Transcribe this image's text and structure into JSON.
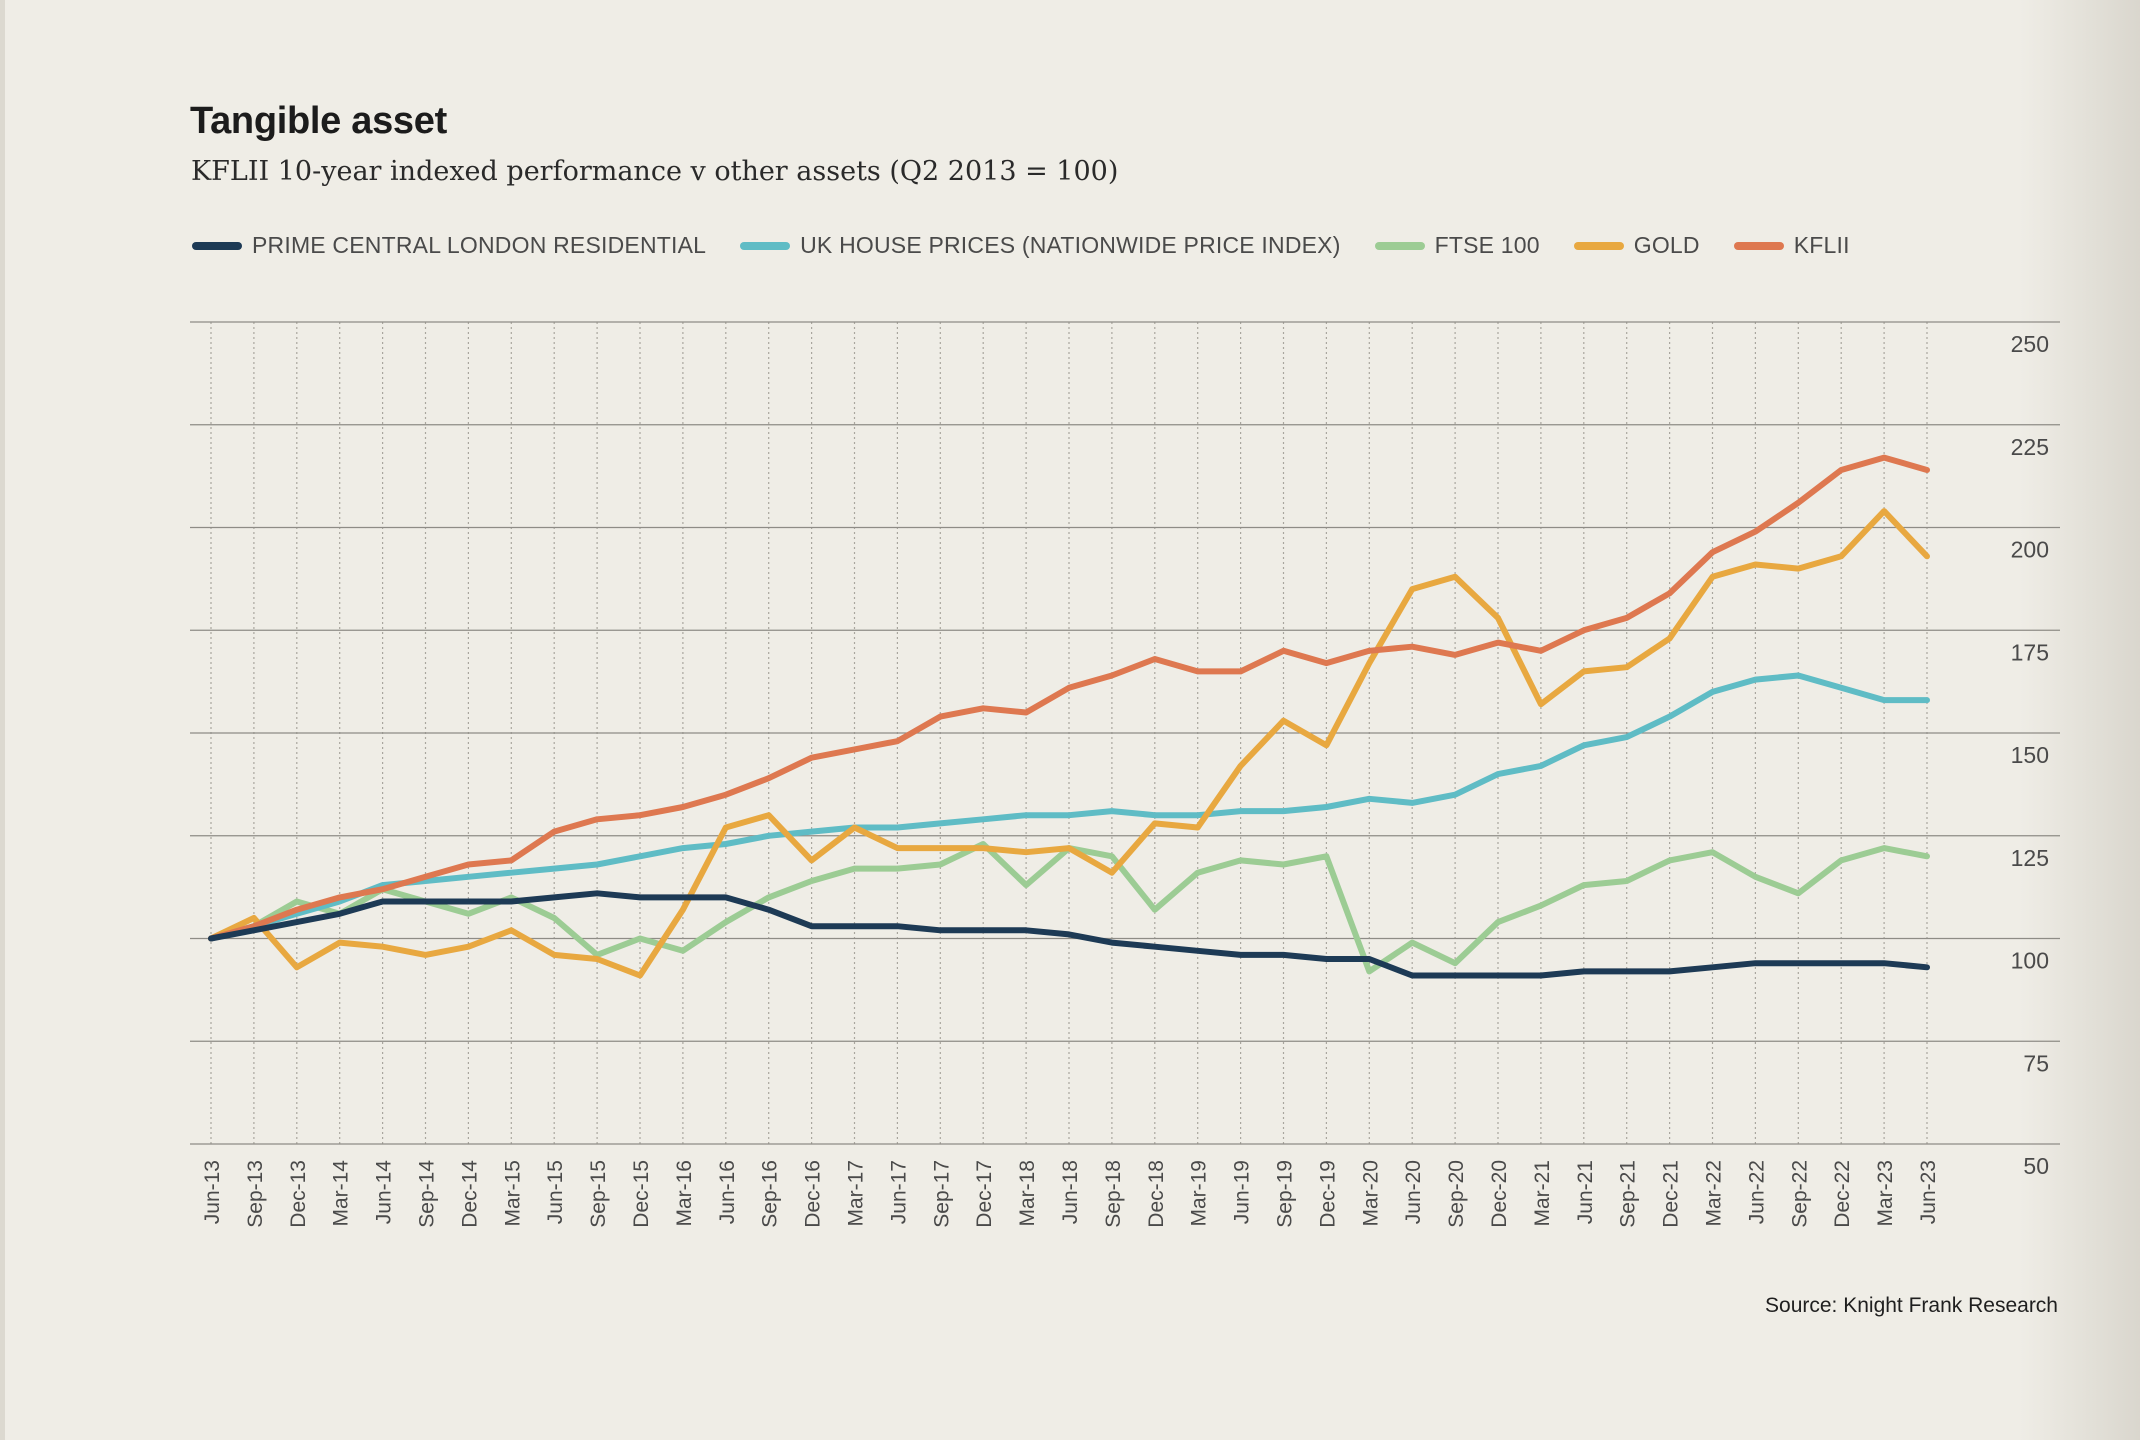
{
  "header": {
    "title": "Tangible asset",
    "subtitle": "KFLII 10-year indexed performance v other assets (Q2 2013 = 100)"
  },
  "footer": {
    "source": "Source: Knight Frank Research"
  },
  "colors": {
    "background": "#efede6",
    "grid_major": "#8e8c86",
    "grid_minor": "#a9a69e",
    "axis_text": "#4a4a4a"
  },
  "chart_data": {
    "type": "line",
    "title": "Tangible asset",
    "subtitle": "KFLII 10-year indexed performance v other assets (Q2 2013 = 100)",
    "xlabel": "",
    "ylabel": "",
    "ylim": [
      50,
      250
    ],
    "yticks": [
      50,
      75,
      100,
      125,
      150,
      175,
      200,
      225,
      250
    ],
    "grid": true,
    "legend_position": "top",
    "x": [
      "Jun-13",
      "Sep-13",
      "Dec-13",
      "Mar-14",
      "Jun-14",
      "Sep-14",
      "Dec-14",
      "Mar-15",
      "Jun-15",
      "Sep-15",
      "Dec-15",
      "Mar-16",
      "Jun-16",
      "Sep-16",
      "Dec-16",
      "Mar-17",
      "Jun-17",
      "Sep-17",
      "Dec-17",
      "Mar-18",
      "Jun-18",
      "Sep-18",
      "Dec-18",
      "Mar-19",
      "Jun-19",
      "Sep-19",
      "Dec-19",
      "Mar-20",
      "Jun-20",
      "Sep-20",
      "Dec-20",
      "Mar-21",
      "Jun-21",
      "Sep-21",
      "Dec-21",
      "Mar-22",
      "Jun-22",
      "Sep-22",
      "Dec-22",
      "Mar-23",
      "Jun-23"
    ],
    "series": [
      {
        "name": "PRIME CENTRAL LONDON RESIDENTIAL",
        "color": "#1d3a55",
        "values": [
          100,
          102,
          104,
          106,
          109,
          109,
          109,
          109,
          110,
          111,
          110,
          110,
          110,
          107,
          103,
          103,
          103,
          102,
          102,
          102,
          101,
          99,
          98,
          97,
          96,
          96,
          95,
          95,
          91,
          91,
          91,
          91,
          92,
          92,
          92,
          93,
          94,
          94,
          94,
          94,
          93
        ]
      },
      {
        "name": "UK HOUSE PRICES (NATIONWIDE PRICE INDEX)",
        "color": "#5fbcc5",
        "values": [
          100,
          103,
          106,
          109,
          113,
          114,
          115,
          116,
          117,
          118,
          120,
          122,
          123,
          125,
          126,
          127,
          127,
          128,
          129,
          130,
          130,
          131,
          130,
          130,
          131,
          131,
          132,
          134,
          133,
          135,
          140,
          142,
          147,
          149,
          154,
          160,
          163,
          164,
          161,
          158,
          158
        ]
      },
      {
        "name": "FTSE 100",
        "color": "#9ccc94",
        "values": [
          100,
          103,
          109,
          106,
          112,
          109,
          106,
          110,
          105,
          96,
          100,
          97,
          104,
          110,
          114,
          117,
          117,
          118,
          123,
          113,
          122,
          120,
          107,
          116,
          119,
          118,
          120,
          92,
          99,
          94,
          104,
          108,
          113,
          114,
          119,
          121,
          115,
          111,
          119,
          122,
          120
        ]
      },
      {
        "name": "GOLD",
        "color": "#e8a840",
        "values": [
          100,
          105,
          93,
          99,
          98,
          96,
          98,
          102,
          96,
          95,
          91,
          107,
          127,
          130,
          119,
          127,
          122,
          122,
          122,
          121,
          122,
          116,
          128,
          127,
          142,
          153,
          147,
          167,
          185,
          188,
          178,
          157,
          165,
          166,
          173,
          188,
          191,
          190,
          193,
          204,
          193
        ]
      },
      {
        "name": "KFLII",
        "color": "#de7850",
        "values": [
          100,
          103,
          107,
          110,
          112,
          115,
          118,
          119,
          126,
          129,
          130,
          132,
          135,
          139,
          144,
          146,
          148,
          154,
          156,
          155,
          161,
          164,
          168,
          165,
          165,
          170,
          167,
          170,
          171,
          169,
          172,
          170,
          175,
          178,
          184,
          194,
          199,
          206,
          214,
          217,
          214
        ]
      }
    ]
  }
}
